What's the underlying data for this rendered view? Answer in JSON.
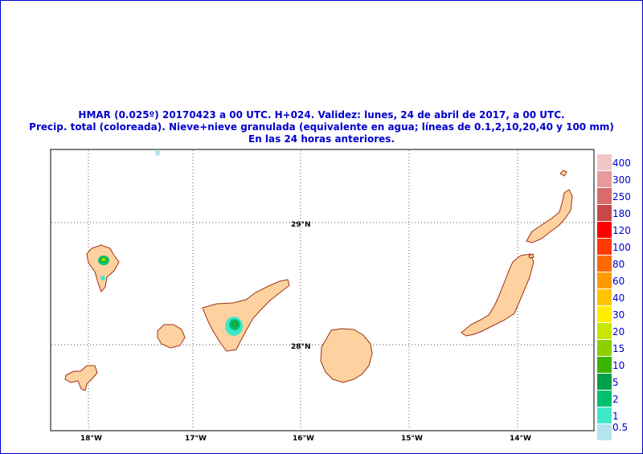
{
  "title": {
    "line1": "HMAR (0.025º) 20170423  a 00 UTC.  H+024. Validez: lunes, 24 de abril de 2017,  a  00 UTC.",
    "line2": "Precip. total (coloreada). Nieve+nieve granulada (equivalente en agua; líneas de 0.1,2,10,20,40 y 100 mm)",
    "line3": "En las 24 horas anteriores."
  },
  "axes": {
    "lon_labels": [
      "18°W",
      "17°W",
      "16°W",
      "15°W",
      "14°W"
    ],
    "lat_labels": [
      "29°N",
      "28°N"
    ]
  },
  "legend": {
    "levels": [
      "400",
      "300",
      "250",
      "180",
      "120",
      "100",
      "80",
      "60",
      "40",
      "30",
      "20",
      "15",
      "10",
      "5",
      "2",
      "1"
    ],
    "bottom_label": "0.5",
    "colors": [
      "#f2c6c6",
      "#e89a9a",
      "#d86b6b",
      "#c84848",
      "#ff0000",
      "#ff3a00",
      "#ff6a00",
      "#ff9a00",
      "#ffc400",
      "#ffee00",
      "#c8e600",
      "#8cd000",
      "#3cb400",
      "#00a04a",
      "#00c070",
      "#40e8c8",
      "#b4e4ec"
    ]
  },
  "colors": {
    "frame": "#0000cc",
    "land": "#fdd2a0",
    "coast": "#a03010"
  }
}
